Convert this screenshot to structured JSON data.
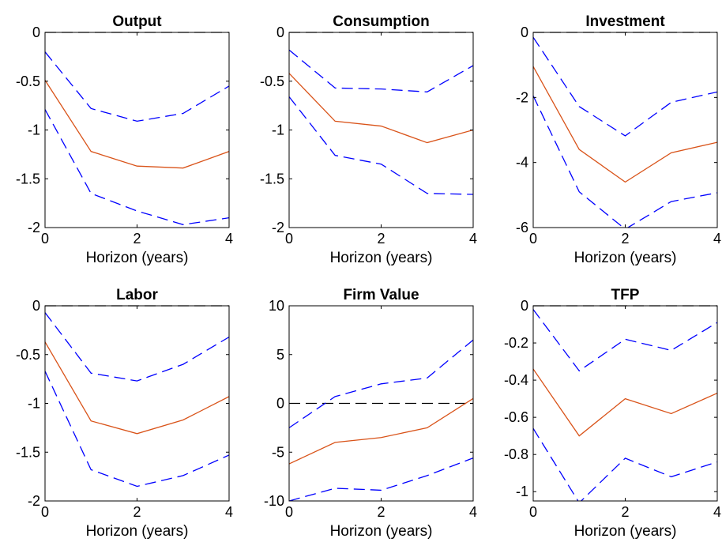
{
  "colors": {
    "irf": "#d95319",
    "band": "#0000ff",
    "zero_line": "#000000"
  },
  "chart_data": [
    {
      "type": "line",
      "title": "Output",
      "xlabel": "Horizon (years)",
      "ylabel": "",
      "xlim": [
        0,
        4
      ],
      "ylim": [
        -2,
        0
      ],
      "xticks": [
        0,
        2,
        4
      ],
      "xtick_labels": [
        "0",
        "2",
        "4"
      ],
      "yticks": [
        0,
        -0.5,
        -1,
        -1.5,
        -2
      ],
      "ytick_labels": [
        "0",
        "-0.5",
        "-1",
        "-1.5",
        "-2"
      ],
      "x": [
        0,
        1,
        2,
        3,
        4
      ],
      "series": [
        {
          "role": "point-estimate",
          "style": "solid",
          "values": [
            -0.49,
            -1.22,
            -1.37,
            -1.39,
            -1.22
          ]
        },
        {
          "role": "upper-band",
          "style": "dashed",
          "values": [
            -0.2,
            -0.78,
            -0.91,
            -0.83,
            -0.55
          ]
        },
        {
          "role": "lower-band",
          "style": "dashed",
          "values": [
            -0.79,
            -1.65,
            -1.83,
            -1.97,
            -1.9
          ]
        }
      ],
      "zero_line": true,
      "grid": false,
      "legend": "none"
    },
    {
      "type": "line",
      "title": "Consumption",
      "xlabel": "Horizon (years)",
      "ylabel": "",
      "xlim": [
        0,
        4
      ],
      "ylim": [
        -2,
        0
      ],
      "xticks": [
        0,
        2,
        4
      ],
      "xtick_labels": [
        "0",
        "2",
        "4"
      ],
      "yticks": [
        0,
        -0.5,
        -1,
        -1.5,
        -2
      ],
      "ytick_labels": [
        "0",
        "-0.5",
        "-1",
        "-1.5",
        "-2"
      ],
      "x": [
        0,
        1,
        2,
        3,
        4
      ],
      "series": [
        {
          "role": "point-estimate",
          "style": "solid",
          "values": [
            -0.42,
            -0.91,
            -0.96,
            -1.13,
            -1.0
          ]
        },
        {
          "role": "upper-band",
          "style": "dashed",
          "values": [
            -0.18,
            -0.57,
            -0.58,
            -0.61,
            -0.34
          ]
        },
        {
          "role": "lower-band",
          "style": "dashed",
          "values": [
            -0.66,
            -1.26,
            -1.35,
            -1.65,
            -1.66
          ]
        }
      ],
      "zero_line": true,
      "grid": false,
      "legend": "none"
    },
    {
      "type": "line",
      "title": "Investment",
      "xlabel": "Horizon (years)",
      "ylabel": "",
      "xlim": [
        0,
        4
      ],
      "ylim": [
        -6,
        0
      ],
      "xticks": [
        0,
        2,
        4
      ],
      "xtick_labels": [
        "0",
        "2",
        "4"
      ],
      "yticks": [
        0,
        -2,
        -4,
        -6
      ],
      "ytick_labels": [
        "0",
        "-2",
        "-4",
        "-6"
      ],
      "x": [
        0,
        1,
        2,
        3,
        4
      ],
      "series": [
        {
          "role": "point-estimate",
          "style": "solid",
          "values": [
            -1.05,
            -3.6,
            -4.6,
            -3.7,
            -3.38
          ]
        },
        {
          "role": "upper-band",
          "style": "dashed",
          "values": [
            -0.15,
            -2.28,
            -3.18,
            -2.15,
            -1.83
          ]
        },
        {
          "role": "lower-band",
          "style": "dashed",
          "values": [
            -1.95,
            -4.9,
            -6.05,
            -5.2,
            -4.93
          ]
        }
      ],
      "zero_line": true,
      "grid": false,
      "legend": "none"
    },
    {
      "type": "line",
      "title": "Labor",
      "xlabel": "Horizon (years)",
      "ylabel": "",
      "xlim": [
        0,
        4
      ],
      "ylim": [
        -2,
        0
      ],
      "xticks": [
        0,
        2,
        4
      ],
      "xtick_labels": [
        "0",
        "2",
        "4"
      ],
      "yticks": [
        0,
        -0.5,
        -1,
        -1.5,
        -2
      ],
      "ytick_labels": [
        "0",
        "-0.5",
        "-1",
        "-1.5",
        "-2"
      ],
      "x": [
        0,
        1,
        2,
        3,
        4
      ],
      "series": [
        {
          "role": "point-estimate",
          "style": "solid",
          "values": [
            -0.37,
            -1.18,
            -1.31,
            -1.17,
            -0.93
          ]
        },
        {
          "role": "upper-band",
          "style": "dashed",
          "values": [
            -0.07,
            -0.69,
            -0.77,
            -0.6,
            -0.32
          ]
        },
        {
          "role": "lower-band",
          "style": "dashed",
          "values": [
            -0.67,
            -1.68,
            -1.85,
            -1.74,
            -1.53
          ]
        }
      ],
      "zero_line": true,
      "grid": false,
      "legend": "none"
    },
    {
      "type": "line",
      "title": "Firm Value",
      "xlabel": "Horizon (years)",
      "ylabel": "",
      "xlim": [
        0,
        4
      ],
      "ylim": [
        -10,
        10
      ],
      "xticks": [
        0,
        2,
        4
      ],
      "xtick_labels": [
        "0",
        "2",
        "4"
      ],
      "yticks": [
        10,
        5,
        0,
        -5,
        -10
      ],
      "ytick_labels": [
        "10",
        "5",
        "0",
        "-5",
        "-10"
      ],
      "x": [
        0,
        1,
        2,
        3,
        4
      ],
      "series": [
        {
          "role": "point-estimate",
          "style": "solid",
          "values": [
            -6.2,
            -4.0,
            -3.5,
            -2.5,
            0.5
          ]
        },
        {
          "role": "upper-band",
          "style": "dashed",
          "values": [
            -2.5,
            0.7,
            2.0,
            2.6,
            6.5
          ]
        },
        {
          "role": "lower-band",
          "style": "dashed",
          "values": [
            -10,
            -8.7,
            -8.9,
            -7.4,
            -5.6
          ]
        }
      ],
      "zero_line": true,
      "grid": false,
      "legend": "none"
    },
    {
      "type": "line",
      "title": "TFP",
      "xlabel": "Horizon (years)",
      "ylabel": "",
      "xlim": [
        0,
        4
      ],
      "ylim": [
        -1.05,
        0
      ],
      "xticks": [
        0,
        2,
        4
      ],
      "xtick_labels": [
        "0",
        "2",
        "4"
      ],
      "yticks": [
        0,
        -0.2,
        -0.4,
        -0.6,
        -0.8,
        -1
      ],
      "ytick_labels": [
        "0",
        "-0.2",
        "-0.4",
        "-0.6",
        "-0.8",
        "-1"
      ],
      "x": [
        0,
        1,
        2,
        3,
        4
      ],
      "series": [
        {
          "role": "point-estimate",
          "style": "solid",
          "values": [
            -0.34,
            -0.7,
            -0.5,
            -0.58,
            -0.47
          ]
        },
        {
          "role": "upper-band",
          "style": "dashed",
          "values": [
            -0.02,
            -0.35,
            -0.18,
            -0.24,
            -0.09
          ]
        },
        {
          "role": "lower-band",
          "style": "dashed",
          "values": [
            -0.66,
            -1.06,
            -0.82,
            -0.92,
            -0.84
          ]
        }
      ],
      "zero_line": true,
      "grid": false,
      "legend": "none"
    }
  ]
}
